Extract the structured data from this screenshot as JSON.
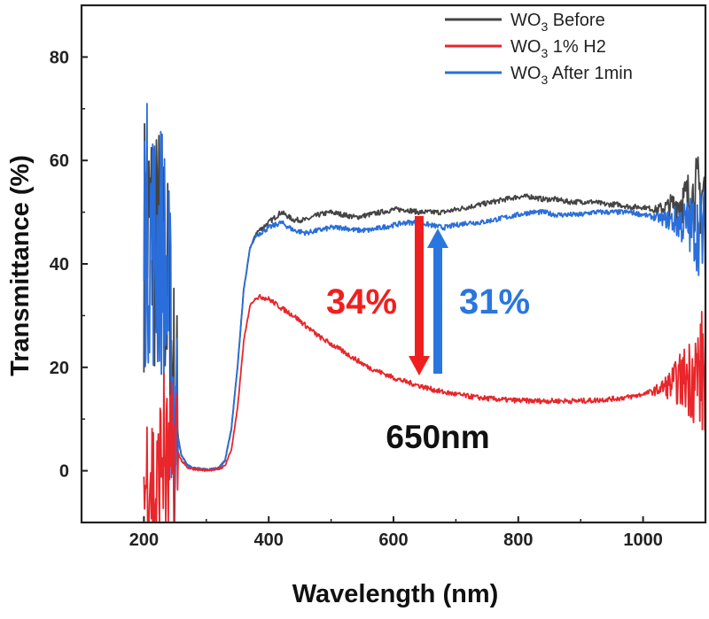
{
  "chart_data": {
    "type": "line",
    "xlabel": "Wavelength (nm)",
    "ylabel": "Transmittance (%)",
    "xlim": [
      100,
      1100
    ],
    "ylim": [
      -10,
      90
    ],
    "xticks": [
      200,
      400,
      600,
      800,
      1000
    ],
    "yticks": [
      0,
      20,
      40,
      60,
      80
    ],
    "grid": false,
    "legend_position": "top-right",
    "series": [
      {
        "name": "WO₃ Before",
        "legend_main": "WO",
        "legend_sub": "3",
        "legend_rest": " Before",
        "color": "#444444",
        "x": [
          200,
          210,
          220,
          230,
          240,
          250,
          260,
          270,
          280,
          300,
          320,
          330,
          340,
          350,
          360,
          370,
          380,
          400,
          420,
          440,
          460,
          480,
          500,
          520,
          540,
          560,
          580,
          600,
          620,
          640,
          660,
          680,
          700,
          720,
          740,
          760,
          780,
          800,
          820,
          840,
          860,
          880,
          900,
          920,
          940,
          960,
          980,
          1000,
          1020,
          1040,
          1060,
          1080,
          1100
        ],
        "y": [
          45,
          47,
          42,
          44,
          30,
          10,
          3,
          1,
          0.5,
          0.2,
          0.5,
          2,
          8,
          20,
          35,
          43,
          46,
          48,
          50,
          48.5,
          48.5,
          49.5,
          50,
          49.5,
          49,
          49.5,
          50,
          50.5,
          50.5,
          50,
          50,
          50,
          50.5,
          51,
          51.5,
          52,
          52.5,
          53,
          53,
          52.5,
          52.5,
          52,
          52,
          52,
          51.5,
          51.5,
          51,
          51,
          50.5,
          51,
          52,
          53,
          54
        ]
      },
      {
        "name": "WO₃ 1% H2",
        "legend_main": "WO",
        "legend_sub": "3",
        "legend_rest": " 1% H2",
        "color": "#e8262b",
        "x": [
          200,
          210,
          220,
          230,
          240,
          250,
          260,
          270,
          280,
          300,
          320,
          330,
          340,
          350,
          360,
          370,
          380,
          390,
          400,
          420,
          440,
          460,
          480,
          500,
          520,
          540,
          560,
          580,
          600,
          620,
          640,
          660,
          680,
          700,
          720,
          740,
          760,
          780,
          800,
          820,
          840,
          860,
          880,
          900,
          920,
          940,
          960,
          980,
          1000,
          1020,
          1040,
          1060,
          1080,
          1100
        ],
        "y": [
          -5,
          2,
          -8,
          5,
          -3,
          5,
          2,
          0.5,
          0.3,
          0.1,
          0.3,
          1,
          4,
          12,
          25,
          32,
          33.5,
          33.6,
          33.2,
          31.5,
          30,
          28,
          26,
          24.5,
          23,
          21.5,
          20,
          19,
          18,
          17.2,
          16.5,
          15.8,
          15.2,
          14.8,
          14.4,
          14.1,
          13.9,
          13.7,
          13.6,
          13.5,
          13.5,
          13.5,
          13.5,
          13.5,
          13.6,
          13.8,
          14,
          14.3,
          14.8,
          15.5,
          16.5,
          17.5,
          18.5,
          19
        ]
      },
      {
        "name": "WO₃ After 1min",
        "legend_main": "WO",
        "legend_sub": "3",
        "legend_rest": " After 1min",
        "color": "#2a6edb",
        "x": [
          200,
          210,
          220,
          230,
          240,
          250,
          260,
          270,
          280,
          300,
          320,
          330,
          340,
          350,
          360,
          370,
          380,
          400,
          420,
          440,
          460,
          480,
          500,
          520,
          540,
          560,
          580,
          600,
          620,
          640,
          660,
          680,
          700,
          720,
          740,
          760,
          780,
          800,
          820,
          840,
          860,
          880,
          900,
          920,
          940,
          960,
          980,
          1000,
          1020,
          1040,
          1060,
          1080,
          1100
        ],
        "y": [
          45,
          47,
          42,
          44,
          30,
          10,
          3,
          1,
          0.5,
          0.2,
          0.5,
          2,
          8,
          20,
          35,
          43,
          45.5,
          47,
          48,
          46.5,
          46,
          46.5,
          47,
          47,
          46.5,
          46.5,
          47,
          47.5,
          48,
          48,
          47.5,
          47,
          47.5,
          48,
          48,
          48.5,
          49,
          49.5,
          50,
          50,
          49.5,
          49.5,
          49.5,
          50,
          50,
          50,
          50,
          49.5,
          49,
          48.5,
          48,
          47,
          45
        ]
      }
    ]
  },
  "annotations": {
    "drop_label": "34%",
    "recover_label": "31%",
    "wavelength_label": "650nm",
    "drop_color": "#f01f1f",
    "recover_color": "#2a76e0"
  }
}
